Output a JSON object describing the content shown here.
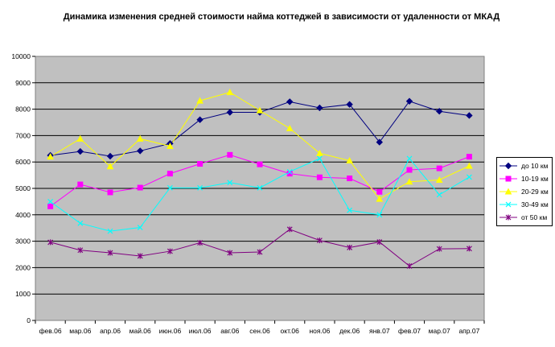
{
  "chart_data": {
    "type": "line",
    "title": "Динамика изменения средней стоимости найма коттеджей в зависимости от удаленности от МКАД",
    "xlabel": "",
    "ylabel": "",
    "ylim": [
      0,
      10000
    ],
    "yticks": [
      0,
      1000,
      2000,
      3000,
      4000,
      5000,
      6000,
      7000,
      8000,
      9000,
      10000
    ],
    "grid": true,
    "legend_position": "right",
    "plot_background": "#c0c0c0",
    "categories": [
      "фев.06",
      "мар.06",
      "апр.06",
      "май.06",
      "июн.06",
      "июл.06",
      "авг.06",
      "сен.06",
      "окт.06",
      "ноя.06",
      "дек.06",
      "янв.07",
      "фев.07",
      "мар.07",
      "апр.07"
    ],
    "series": [
      {
        "name": "до 10 км",
        "color": "#000080",
        "marker": "diamond",
        "values": [
          6250,
          6400,
          6220,
          6420,
          6700,
          7600,
          7880,
          7880,
          8280,
          8050,
          8180,
          6750,
          8300,
          7920,
          7760
        ]
      },
      {
        "name": "10-19 км",
        "color": "#ff00ff",
        "marker": "square",
        "values": [
          4320,
          5150,
          4850,
          5030,
          5560,
          5930,
          6270,
          5910,
          5560,
          5420,
          5380,
          4870,
          5700,
          5760,
          6200
        ]
      },
      {
        "name": "20-29 км",
        "color": "#ffff00",
        "marker": "triangle",
        "values": [
          6200,
          6880,
          5830,
          6880,
          6600,
          8320,
          8640,
          7950,
          7270,
          6330,
          6050,
          4600,
          5250,
          5320,
          5850
        ]
      },
      {
        "name": "30-49 км",
        "color": "#00ffff",
        "marker": "x",
        "values": [
          4500,
          3680,
          3380,
          3520,
          5020,
          5020,
          5220,
          5020,
          5630,
          6130,
          4170,
          4000,
          6130,
          4760,
          5430
        ]
      },
      {
        "name": "от 50 км",
        "color": "#800080",
        "marker": "star",
        "values": [
          2960,
          2660,
          2560,
          2440,
          2620,
          2940,
          2560,
          2590,
          3450,
          3030,
          2760,
          2970,
          2060,
          2710,
          2720
        ]
      }
    ]
  }
}
